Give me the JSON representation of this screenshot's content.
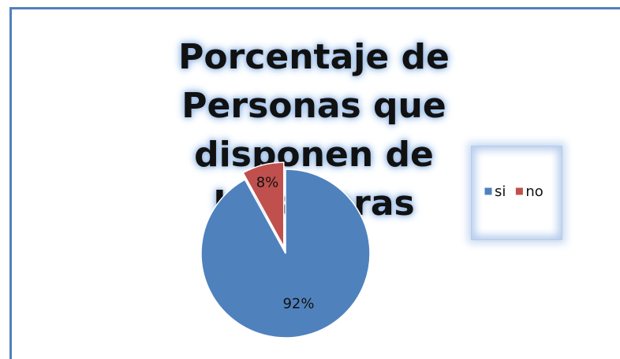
{
  "chart_data": {
    "type": "pie",
    "title": "Porcentaje de Personas que disponen de Lavadoras",
    "categories": [
      "si",
      "no"
    ],
    "values": [
      92,
      8
    ],
    "value_labels": [
      "92%",
      "8%"
    ],
    "colors": [
      "#4f81bd",
      "#c0504d"
    ],
    "legend": "right"
  }
}
